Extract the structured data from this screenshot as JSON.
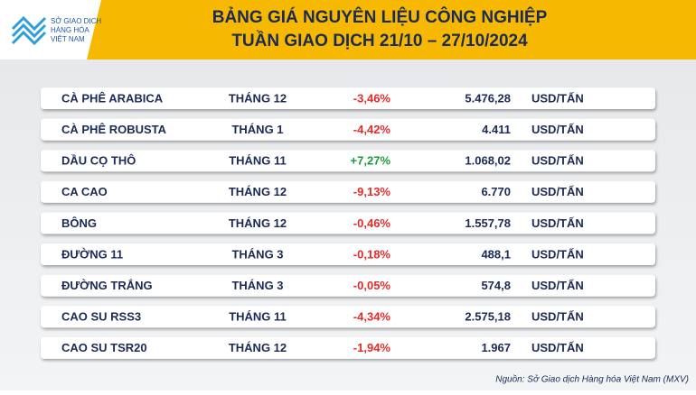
{
  "header": {
    "logo": [
      "SỞ GIAO DỊCH",
      "HÀNG HÓA",
      "VIỆT NAM"
    ],
    "title": [
      "BẢNG GIÁ NGUYÊN LIỆU CÔNG NGHIỆP",
      "TUẦN GIAO DỊCH 21/10 – 27/10/2024"
    ]
  },
  "table": {
    "rows": [
      [
        "CÀ PHÊ ARABICA",
        "THÁNG 12",
        "-3,46%",
        "5.476,28",
        "USD/TẤN"
      ],
      [
        "CÀ PHÊ ROBUSTA",
        "THÁNG 1",
        "-4,42%",
        "4.411",
        "USD/TẤN"
      ],
      [
        "DẦU CỌ THÔ",
        "THÁNG 11",
        "+7,27%",
        "1.068,02",
        "USD/TẤN"
      ],
      [
        "CA CAO",
        "THÁNG 12",
        "-9,13%",
        "6.770",
        "USD/TẤN"
      ],
      [
        "BÔNG",
        "THÁNG 12",
        "-0,46%",
        "1.557,78",
        "USD/TẤN"
      ],
      [
        "ĐƯỜNG 11",
        "THÁNG 3",
        "-0,18%",
        "488,1",
        "USD/TẤN"
      ],
      [
        "ĐƯỜNG TRẮNG",
        "THÁNG 3",
        "-0,05%",
        "574,8",
        "USD/TẤN"
      ],
      [
        "CAO SU RSS3",
        "THÁNG 11",
        "-4,34%",
        "2.575,18",
        "USD/TẤN"
      ],
      [
        "CAO SU TSR20",
        "THÁNG 12",
        "-1,94%",
        "1.967",
        "USD/TẤN"
      ]
    ]
  },
  "footer": {
    "source": "Nguồn: Sở Giao dịch Hàng hóa Việt Nam (MXV)"
  }
}
